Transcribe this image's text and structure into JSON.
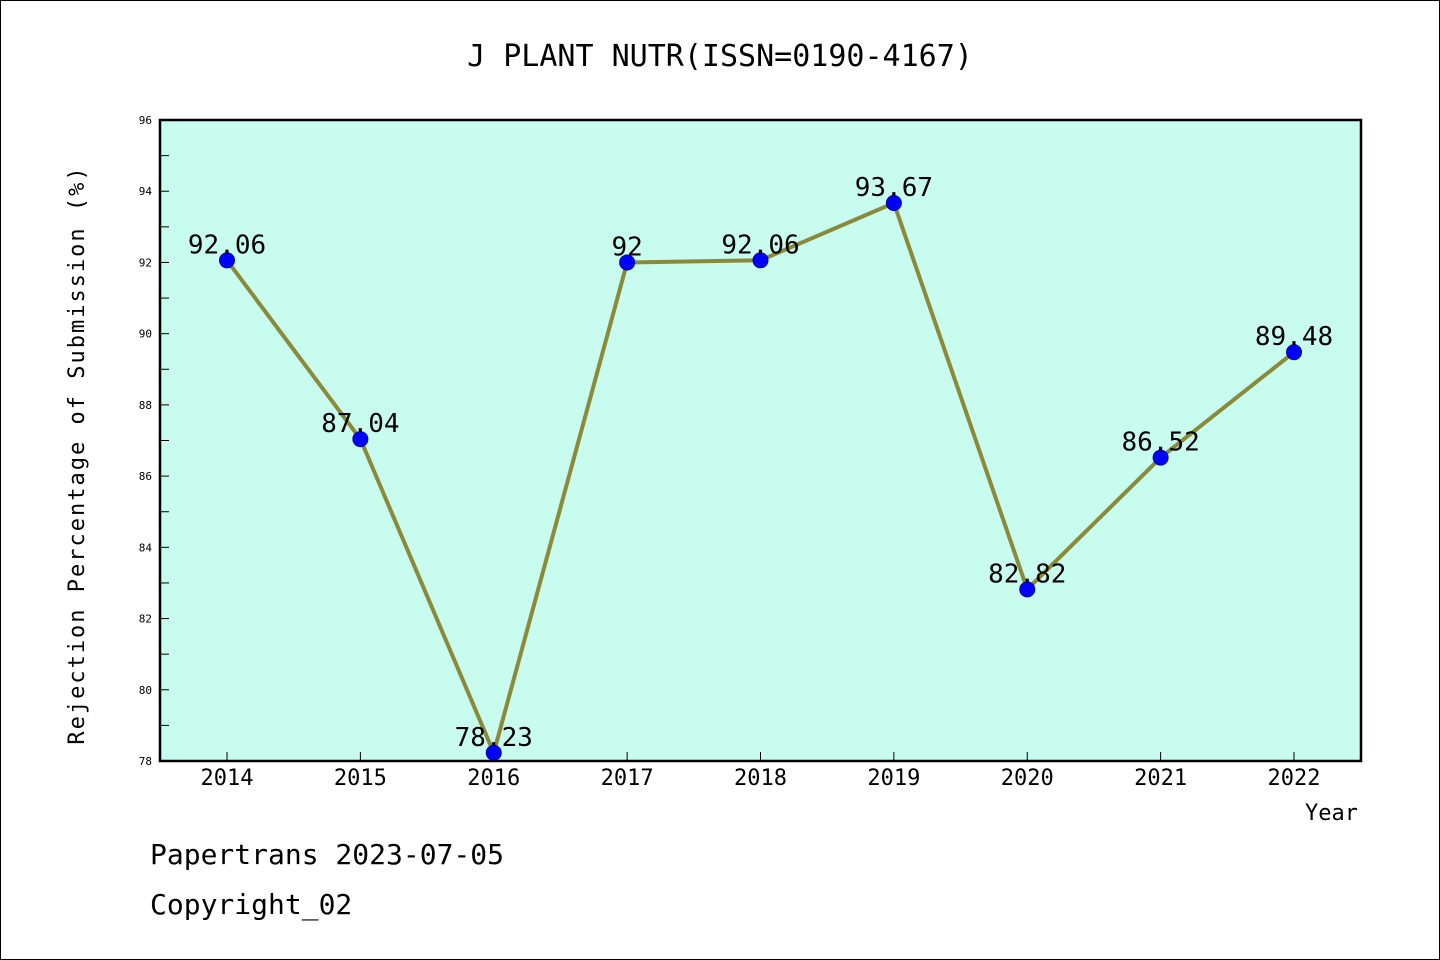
{
  "chart_data": {
    "type": "line",
    "title": "J PLANT NUTR(ISSN=0190-4167)",
    "xlabel": "Year",
    "ylabel": "Rejection Percentage of Submission (%)",
    "categories": [
      "2014",
      "2015",
      "2016",
      "2017",
      "2018",
      "2019",
      "2020",
      "2021",
      "2022"
    ],
    "values": [
      92.06,
      87.04,
      78.23,
      92,
      92.06,
      93.67,
      82.82,
      86.52,
      89.48
    ],
    "value_labels": [
      "92.06",
      "87.04",
      "78.23",
      "92",
      "92.06",
      "93.67",
      "82.82",
      "86.52",
      "89.48"
    ],
    "ylim": [
      78,
      96
    ],
    "yticks": [
      78,
      80,
      82,
      84,
      86,
      88,
      90,
      92,
      94,
      96
    ],
    "grid": false,
    "colors": {
      "plot_background": "#c7fcee",
      "line": "#8a8a3a",
      "marker": "#0000ff"
    }
  },
  "footer": {
    "line1": "Papertrans 2023-07-05",
    "line2": "Copyright_02"
  }
}
